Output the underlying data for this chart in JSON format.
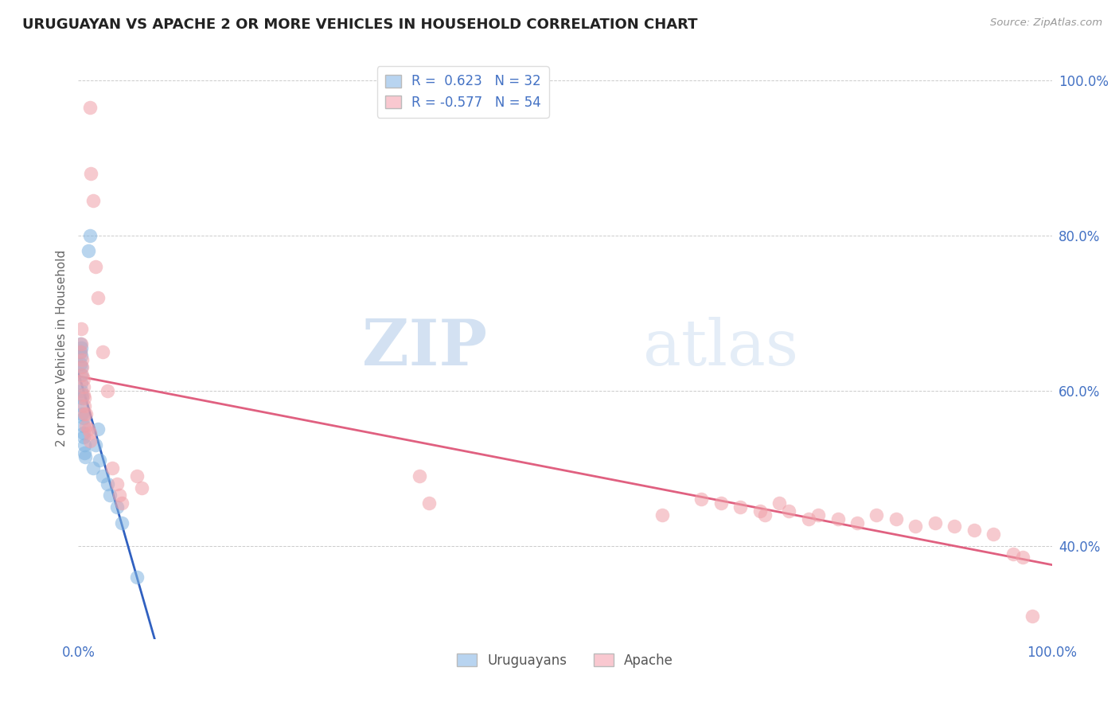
{
  "title": "URUGUAYAN VS APACHE 2 OR MORE VEHICLES IN HOUSEHOLD CORRELATION CHART",
  "source": "Source: ZipAtlas.com",
  "ylabel": "2 or more Vehicles in Household",
  "xmin": 0.0,
  "xmax": 1.0,
  "ymin": 0.28,
  "ymax": 1.03,
  "ytick_positions": [
    0.4,
    0.6,
    0.8,
    1.0
  ],
  "ytick_labels": [
    "40.0%",
    "60.0%",
    "80.0%",
    "100.0%"
  ],
  "xtick_positions": [
    0.0,
    0.2,
    0.4,
    0.6,
    0.8,
    1.0
  ],
  "xtick_labels": [
    "0.0%",
    "",
    "",
    "",
    "",
    "100.0%"
  ],
  "watermark_line1": "ZIP",
  "watermark_line2": "atlas",
  "legend_r_items": [
    {
      "label": "R =  0.623   N = 32",
      "facecolor": "#b8d4f0"
    },
    {
      "label": "R = -0.577   N = 54",
      "facecolor": "#f9c8d0"
    }
  ],
  "legend_bottom": [
    {
      "label": "Uruguayans",
      "facecolor": "#b8d4f0"
    },
    {
      "label": "Apache",
      "facecolor": "#f9c8d0"
    }
  ],
  "uruguayan_dot_color": "#80b4e0",
  "uruguayan_edge_color": "#80b4e0",
  "apache_dot_color": "#f0a0a8",
  "apache_edge_color": "#f0a0a8",
  "trend_uruguayan_color": "#3060c0",
  "trend_apache_color": "#e06080",
  "uruguayan_points": [
    [
      0.002,
      0.635
    ],
    [
      0.002,
      0.65
    ],
    [
      0.002,
      0.66
    ],
    [
      0.003,
      0.655
    ],
    [
      0.003,
      0.645
    ],
    [
      0.003,
      0.63
    ],
    [
      0.003,
      0.62
    ],
    [
      0.003,
      0.61
    ],
    [
      0.003,
      0.6
    ],
    [
      0.004,
      0.595
    ],
    [
      0.004,
      0.59
    ],
    [
      0.004,
      0.58
    ],
    [
      0.004,
      0.57
    ],
    [
      0.005,
      0.565
    ],
    [
      0.005,
      0.555
    ],
    [
      0.005,
      0.545
    ],
    [
      0.005,
      0.54
    ],
    [
      0.006,
      0.53
    ],
    [
      0.006,
      0.52
    ],
    [
      0.007,
      0.515
    ],
    [
      0.01,
      0.78
    ],
    [
      0.012,
      0.8
    ],
    [
      0.015,
      0.5
    ],
    [
      0.018,
      0.53
    ],
    [
      0.02,
      0.55
    ],
    [
      0.022,
      0.51
    ],
    [
      0.025,
      0.49
    ],
    [
      0.03,
      0.48
    ],
    [
      0.032,
      0.465
    ],
    [
      0.04,
      0.45
    ],
    [
      0.045,
      0.43
    ],
    [
      0.06,
      0.36
    ]
  ],
  "apache_points": [
    [
      0.002,
      0.65
    ],
    [
      0.003,
      0.68
    ],
    [
      0.003,
      0.66
    ],
    [
      0.004,
      0.64
    ],
    [
      0.004,
      0.63
    ],
    [
      0.004,
      0.62
    ],
    [
      0.005,
      0.615
    ],
    [
      0.005,
      0.605
    ],
    [
      0.005,
      0.595
    ],
    [
      0.006,
      0.59
    ],
    [
      0.006,
      0.58
    ],
    [
      0.006,
      0.57
    ],
    [
      0.008,
      0.57
    ],
    [
      0.008,
      0.555
    ],
    [
      0.01,
      0.55
    ],
    [
      0.012,
      0.545
    ],
    [
      0.012,
      0.535
    ],
    [
      0.012,
      0.965
    ],
    [
      0.013,
      0.88
    ],
    [
      0.015,
      0.845
    ],
    [
      0.018,
      0.76
    ],
    [
      0.02,
      0.72
    ],
    [
      0.025,
      0.65
    ],
    [
      0.03,
      0.6
    ],
    [
      0.035,
      0.5
    ],
    [
      0.04,
      0.48
    ],
    [
      0.042,
      0.465
    ],
    [
      0.045,
      0.455
    ],
    [
      0.06,
      0.49
    ],
    [
      0.065,
      0.475
    ],
    [
      0.35,
      0.49
    ],
    [
      0.36,
      0.455
    ],
    [
      0.6,
      0.44
    ],
    [
      0.64,
      0.46
    ],
    [
      0.66,
      0.455
    ],
    [
      0.68,
      0.45
    ],
    [
      0.7,
      0.445
    ],
    [
      0.705,
      0.44
    ],
    [
      0.72,
      0.455
    ],
    [
      0.73,
      0.445
    ],
    [
      0.75,
      0.435
    ],
    [
      0.76,
      0.44
    ],
    [
      0.78,
      0.435
    ],
    [
      0.8,
      0.43
    ],
    [
      0.82,
      0.44
    ],
    [
      0.84,
      0.435
    ],
    [
      0.86,
      0.425
    ],
    [
      0.88,
      0.43
    ],
    [
      0.9,
      0.425
    ],
    [
      0.92,
      0.42
    ],
    [
      0.94,
      0.415
    ],
    [
      0.96,
      0.39
    ],
    [
      0.97,
      0.385
    ],
    [
      0.98,
      0.31
    ]
  ],
  "grid_color": "#cccccc",
  "background_color": "#ffffff",
  "tick_color": "#4472C4",
  "label_color": "#666666"
}
